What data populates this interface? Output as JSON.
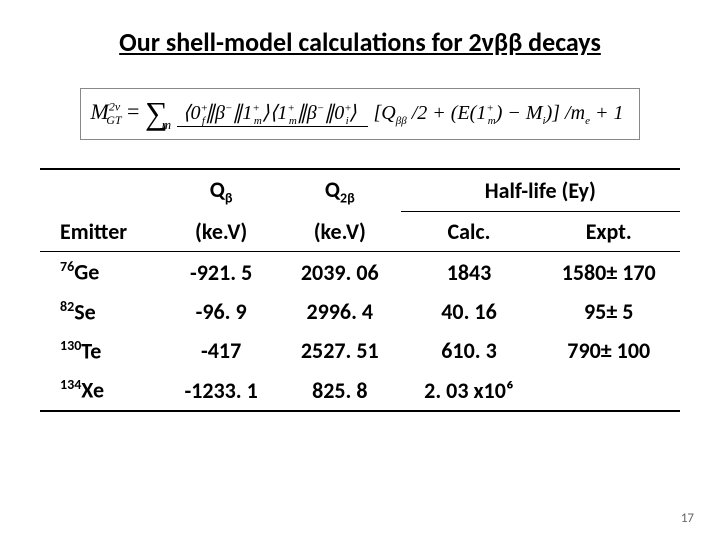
{
  "title": "Our shell-model calculations for 2νββ decays",
  "formula": {
    "lhs": "M",
    "lhs_sup": "2ν",
    "lhs_sub": "GT",
    "numerator": "⟨0⁺_f ∥β⁻∥1⁺_m⟩⟨1⁺_m∥β⁻∥0⁺_i⟩",
    "denominator": "[Q_ββ /2 + (E(1⁺_m) − M_i)] / m_e + 1"
  },
  "headers": {
    "emitter": "Emitter",
    "qb": "Q",
    "qb_sub": "β",
    "q2b": "Q",
    "q2b_sub": "2β",
    "halflife": "Half-life (Ey)",
    "unit": "(ke.V)",
    "calc": "Calc.",
    "expt": "Expt."
  },
  "rows": [
    {
      "iso_sup": "76",
      "iso": "Ge",
      "qb": "-921. 5",
      "q2b": "2039. 06",
      "calc": "1843",
      "expt": "1580± 170"
    },
    {
      "iso_sup": "82",
      "iso": "Se",
      "qb": "-96. 9",
      "q2b": "2996. 4",
      "calc": "40. 16",
      "expt": "95± 5"
    },
    {
      "iso_sup": "130",
      "iso": "Te",
      "qb": "-417",
      "q2b": "2527. 51",
      "calc": "610. 3",
      "expt": "790± 100"
    },
    {
      "iso_sup": "134",
      "iso": "Xe",
      "qb": "-1233. 1",
      "q2b": "825. 8",
      "calc": "2. 03 x10⁶",
      "expt": ""
    }
  ],
  "page_number": "17",
  "colors": {
    "text": "#000000",
    "border": "#000000",
    "bg": "#ffffff"
  },
  "fonts": {
    "title_size": 26,
    "cell_size": 22,
    "sub_size": 14
  }
}
